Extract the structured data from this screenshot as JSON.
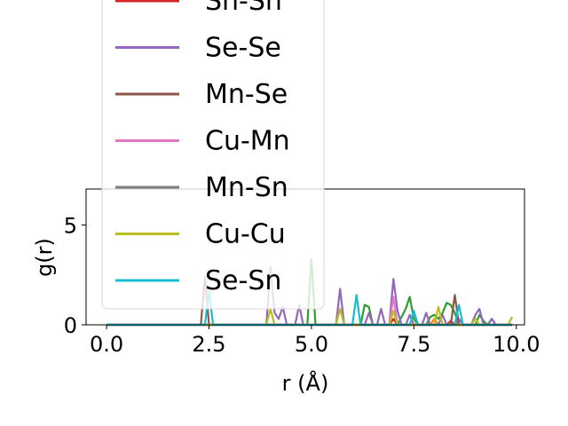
{
  "chart_data": {
    "type": "line",
    "xlabel": "r (Å)",
    "ylabel": "g(r)",
    "xlim": [
      -0.5,
      10.2
    ],
    "ylim": [
      0,
      6.8
    ],
    "xticks": [
      "0.0",
      "2.5",
      "5.0",
      "7.5",
      "10.0"
    ],
    "xtick_values": [
      0,
      2.5,
      5,
      7.5,
      10
    ],
    "yticks": [
      "0",
      "5"
    ],
    "ytick_values": [
      0,
      5
    ],
    "grid": false,
    "legend": "upper-left, overflowing above plot area",
    "x": [
      0.0,
      0.2,
      0.4,
      0.6,
      0.8,
      1.0,
      1.2,
      1.4,
      1.6,
      1.8,
      2.0,
      2.2,
      2.3,
      2.4,
      2.5,
      2.6,
      2.7,
      2.8,
      3.0,
      3.2,
      3.4,
      3.6,
      3.8,
      3.9,
      4.0,
      4.1,
      4.2,
      4.3,
      4.4,
      4.5,
      4.6,
      4.7,
      4.8,
      4.9,
      5.0,
      5.1,
      5.2,
      5.4,
      5.6,
      5.7,
      5.8,
      5.9,
      6.0,
      6.1,
      6.2,
      6.3,
      6.4,
      6.5,
      6.6,
      6.7,
      6.8,
      6.9,
      7.0,
      7.1,
      7.2,
      7.3,
      7.4,
      7.5,
      7.6,
      7.7,
      7.8,
      7.9,
      8.0,
      8.1,
      8.2,
      8.3,
      8.4,
      8.5,
      8.6,
      8.7,
      8.8,
      8.9,
      9.0,
      9.1,
      9.2,
      9.3,
      9.4,
      9.5,
      9.6,
      9.7,
      9.8,
      9.9
    ],
    "series": [
      {
        "name": "Sn-Sn",
        "color": "#d62728",
        "values": [
          0,
          0,
          0,
          0,
          0,
          0,
          0,
          0,
          0,
          0,
          0,
          0,
          0,
          0,
          0,
          0,
          0,
          0,
          0,
          0,
          0,
          0,
          0,
          0,
          0,
          0,
          0,
          0,
          0,
          0,
          0,
          0,
          0,
          0,
          0,
          0,
          0,
          0,
          0,
          0,
          0,
          0,
          0,
          0,
          0,
          0,
          0,
          0,
          0,
          0,
          0,
          0,
          0.3,
          0,
          0,
          0,
          0,
          0,
          0,
          0,
          0,
          0,
          0,
          0,
          0,
          0,
          0.2,
          0,
          0,
          0,
          0,
          0,
          0,
          0,
          0,
          0,
          0,
          0,
          0,
          0,
          0,
          0
        ]
      },
      {
        "name": "Se-Se",
        "color": "#9467bd",
        "values": [
          0,
          0,
          0,
          0,
          0,
          0,
          0,
          0,
          0,
          0,
          0,
          0,
          0,
          0,
          0,
          0,
          0,
          0,
          0,
          0,
          0,
          0,
          0,
          0,
          2.9,
          0.6,
          0.3,
          0.9,
          0,
          0,
          0,
          1.0,
          0,
          0,
          0,
          0,
          0,
          0,
          0,
          1.8,
          0,
          0,
          0,
          0,
          0,
          0,
          0.6,
          0,
          0,
          0.8,
          0,
          0,
          2.3,
          0.7,
          0,
          0,
          0.5,
          0,
          0,
          0,
          0.6,
          0,
          0,
          0,
          0.5,
          0,
          0,
          0,
          0.3,
          0,
          0,
          0,
          0.5,
          0.8,
          0,
          0,
          0.3,
          0,
          0,
          0,
          0,
          0
        ]
      },
      {
        "name": "Mn-Se",
        "color": "#8c564b",
        "values": [
          0,
          0,
          0,
          0,
          0,
          0,
          0,
          0,
          0,
          0,
          0,
          0,
          0,
          2.4,
          0,
          0,
          0,
          0,
          0,
          0,
          0,
          0,
          0,
          0,
          0,
          0,
          0,
          0,
          0,
          0,
          0,
          0,
          0,
          0,
          0,
          0,
          0,
          0,
          0,
          0,
          0,
          0,
          0,
          0,
          0,
          0,
          0,
          0,
          0,
          0,
          0,
          0,
          0,
          0,
          0,
          0,
          0,
          0,
          0,
          0,
          0,
          0,
          0,
          0,
          0,
          0,
          0,
          1.5,
          0,
          0,
          0,
          0,
          0,
          0,
          0,
          0,
          0,
          0,
          0,
          0,
          0,
          0
        ]
      },
      {
        "name": "Cu-Mn",
        "color": "#e377c2",
        "values": [
          0,
          0,
          0,
          0,
          0,
          0,
          0,
          0,
          0,
          0,
          0,
          0,
          0,
          0,
          0,
          0,
          0,
          0,
          0,
          0,
          0,
          0,
          0,
          0,
          0,
          0,
          0,
          0,
          0,
          0,
          0,
          0,
          0,
          0,
          0,
          0,
          0,
          0,
          0,
          0,
          0,
          0,
          0,
          0,
          0,
          0,
          0,
          0,
          0,
          0,
          0,
          0,
          1.4,
          0,
          0,
          0,
          0,
          0,
          0,
          0,
          0,
          0,
          0,
          0,
          0,
          0,
          0,
          0,
          0,
          0,
          0,
          0,
          0,
          0,
          0,
          0,
          0,
          0,
          0,
          0,
          0,
          0
        ]
      },
      {
        "name": "Mn-Sn",
        "color": "#7f7f7f",
        "values": [
          0,
          0,
          0,
          0,
          0,
          0,
          0,
          0,
          0,
          0,
          0,
          0,
          0,
          0,
          0,
          0,
          0,
          0,
          0,
          0,
          0,
          0,
          0,
          0,
          0,
          0,
          0,
          0,
          0,
          0,
          0,
          0,
          0,
          0,
          0,
          0,
          0,
          0,
          0,
          0,
          0,
          0,
          0,
          0,
          0,
          0,
          0,
          0,
          0,
          0,
          0,
          0,
          0,
          0,
          0,
          0,
          0,
          0,
          0,
          0,
          0,
          0,
          0,
          0,
          0,
          0,
          0,
          0,
          0,
          0,
          0,
          0,
          0,
          0,
          0,
          0,
          0,
          0,
          0,
          0,
          0,
          0
        ]
      },
      {
        "name": "Cu-Cu",
        "color": "#bcbd22",
        "values": [
          0,
          0,
          0,
          0,
          0,
          0,
          0,
          0,
          0,
          0,
          0,
          0,
          0,
          0,
          0,
          0,
          0,
          0,
          0,
          0,
          0,
          0,
          0,
          0,
          0.8,
          0,
          0,
          0,
          0,
          0,
          0,
          0,
          0,
          0,
          0,
          0,
          0,
          0,
          0,
          0.8,
          0,
          0,
          0,
          0,
          0,
          0,
          0,
          0,
          0,
          0,
          0,
          0,
          0.7,
          0,
          0,
          0,
          0,
          0,
          0,
          0,
          0,
          0,
          0,
          0.9,
          0,
          0,
          0,
          0,
          0,
          0,
          0,
          0,
          0.3,
          0,
          0,
          0,
          0,
          0,
          0,
          0,
          0,
          0.4
        ]
      },
      {
        "name": "Se-Sn",
        "color": "#17becf",
        "values": [
          0,
          0,
          0,
          0,
          0,
          0,
          0,
          0,
          0,
          0,
          0,
          0,
          0,
          0,
          1.7,
          0,
          0,
          0,
          0,
          0,
          0,
          0,
          0,
          0,
          0,
          0,
          0,
          0,
          0,
          0,
          0,
          0,
          0,
          0,
          0,
          0,
          0,
          0,
          0,
          0,
          0,
          0,
          0,
          1.5,
          0,
          0,
          0,
          0,
          0,
          0,
          0,
          0,
          0,
          0,
          0,
          0,
          0,
          0.7,
          0,
          0,
          0,
          0,
          0,
          0,
          0,
          0,
          0,
          0,
          1.0,
          0,
          0,
          0,
          0,
          0,
          0,
          0,
          0,
          0,
          0,
          0,
          0,
          0
        ]
      }
    ],
    "extra_lines": [
      {
        "color": "#2ca02c",
        "values": [
          0,
          0,
          0,
          0,
          0,
          0,
          0,
          0,
          0,
          0,
          0,
          0,
          0,
          0,
          0,
          0,
          0,
          0,
          0,
          0,
          0,
          0,
          0,
          0,
          0,
          0,
          0,
          0,
          0,
          0,
          0,
          0,
          0,
          0,
          3.3,
          0,
          0,
          0,
          0,
          0,
          0,
          0,
          0,
          0,
          0,
          0,
          0,
          0,
          0,
          0,
          0,
          0,
          0,
          0,
          0,
          0,
          0,
          0,
          0,
          0,
          0,
          0,
          0,
          0,
          0,
          0,
          0,
          0,
          0,
          0,
          0,
          0,
          0,
          0,
          0,
          0,
          0,
          0,
          0,
          0,
          0,
          0
        ]
      },
      {
        "color": "#2ca02c",
        "values": [
          0,
          0,
          0,
          0,
          0,
          0,
          0,
          0,
          0,
          0,
          0,
          0,
          0,
          0,
          0,
          0,
          0,
          0,
          0,
          0,
          0,
          0,
          0,
          0,
          0,
          0,
          0,
          0,
          0,
          0,
          0,
          0,
          0,
          0,
          0,
          0,
          0,
          0,
          0,
          0,
          0,
          0,
          0,
          0,
          0,
          1.0,
          0.9,
          0,
          0,
          0,
          0,
          0,
          0,
          0,
          0.4,
          0.8,
          1.4,
          0.3,
          0,
          0,
          0,
          0.4,
          0.5,
          0.3,
          0.6,
          1.1,
          1.0,
          0.6,
          0,
          0,
          0,
          0,
          0,
          0.5,
          0.2,
          0,
          0.3,
          0,
          0,
          0,
          0,
          0
        ]
      },
      {
        "color": "#ff7f0e",
        "values": [
          0,
          0,
          0,
          0,
          0,
          0,
          0,
          0,
          0,
          0,
          0,
          0,
          0,
          0,
          0,
          0,
          0,
          0,
          0,
          0,
          0,
          0,
          0,
          0,
          0,
          0,
          0,
          0,
          0,
          0,
          0,
          0,
          0,
          0,
          0,
          0,
          0,
          0,
          0,
          0,
          0,
          0,
          0,
          0,
          0,
          0,
          0,
          0,
          0,
          0,
          0,
          0,
          0,
          0,
          0,
          0,
          0,
          0,
          0,
          0,
          0,
          0,
          0.3,
          0,
          0,
          0,
          0,
          0,
          0,
          0,
          0,
          0,
          0,
          0,
          0,
          0,
          0,
          0,
          0,
          0,
          0,
          0
        ]
      },
      {
        "color": "#1f77b4",
        "values": [
          0,
          0,
          0,
          0,
          0,
          0,
          0,
          0,
          0,
          0,
          0,
          0,
          0,
          0,
          0,
          0,
          0,
          0,
          0,
          0,
          0,
          0,
          0,
          0,
          0,
          0,
          0,
          0,
          0,
          0,
          0,
          0,
          0,
          0,
          0,
          0,
          0,
          0,
          0,
          0,
          0,
          0,
          0,
          0,
          0,
          0,
          0,
          0,
          0,
          0,
          0,
          0,
          0,
          0,
          0,
          0,
          0,
          0,
          0,
          0,
          0,
          0,
          0,
          0,
          0,
          0,
          0,
          0,
          0,
          0,
          0,
          0,
          0,
          0,
          0,
          0,
          0,
          0,
          0,
          0,
          0,
          0
        ]
      }
    ]
  }
}
